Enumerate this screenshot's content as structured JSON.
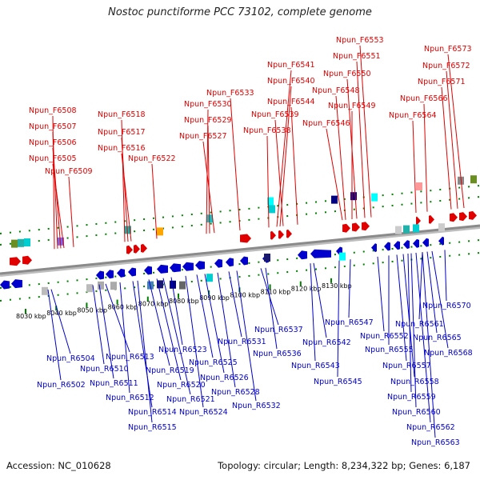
{
  "title": "Nostoc punctiforme PCC 73102, complete genome",
  "footer": {
    "accession": "Accession: NC_010628",
    "summary": "Topology: circular; Length: 8,234,322 bp; Genes: 6,187"
  },
  "colors": {
    "forward": "#e00000",
    "reverse": "#0000cc",
    "backbone": "#8a8a8a",
    "ticks": "#008000"
  },
  "ticks": [
    "8030 kbp",
    "8040 kbp",
    "8050 kbp",
    "8060 kbp",
    "8070 kbp",
    "8080 kbp",
    "8090 kbp",
    "8100 kbp",
    "8110 kbp",
    "8120 kbp",
    "8130 kbp"
  ],
  "forward_genes": [
    "Npun_F6508",
    "Npun_F6507",
    "Npun_F6506",
    "Npun_F6505",
    "Npun_F6509",
    "Npun_F6518",
    "Npun_F6517",
    "Npun_F6516",
    "Npun_F6522",
    "Npun_F6533",
    "Npun_F6530",
    "Npun_F6529",
    "Npun_F6527",
    "Npun_F6541",
    "Npun_F6540",
    "Npun_F6544",
    "Npun_F6539",
    "Npun_F6538",
    "Npun_F6553",
    "Npun_F6551",
    "Npun_F6550",
    "Npun_F6548",
    "Npun_F6549",
    "Npun_F6546",
    "Npun_F6573",
    "Npun_F6572",
    "Npun_F6571",
    "Npun_F6566",
    "Npun_F6564"
  ],
  "reverse_genes": [
    "Npun_R6504",
    "Npun_R6502",
    "Npun_R6510",
    "Npun_R6513",
    "Npun_R6511",
    "Npun_R6512",
    "Npun_R6514",
    "Npun_R6515",
    "Npun_R6519",
    "Npun_R6520",
    "Npun_R6521",
    "Npun_R6523",
    "Npun_R6524",
    "Npun_R6525",
    "Npun_R6526",
    "Npun_R6528",
    "Npun_R6531",
    "Npun_R6532",
    "Npun_R6537",
    "Npun_R6536",
    "Npun_R6542",
    "Npun_R6543",
    "Npun_R6545",
    "Npun_R6547",
    "Npun_R6552",
    "Npun_R6555",
    "Npun_R6557",
    "Npun_R6558",
    "Npun_R6559",
    "Npun_R6560",
    "Npun_R6561",
    "Npun_R6562",
    "Npun_R6563",
    "Npun_R6565",
    "Npun_R6568",
    "Npun_R6570"
  ]
}
